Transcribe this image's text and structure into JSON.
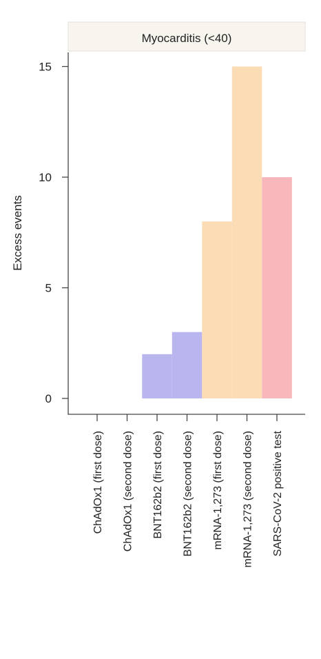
{
  "chart_data": {
    "type": "bar",
    "title": "",
    "panel_title": "Myocarditis (<40)",
    "xlabel": "",
    "ylabel": "Excess events",
    "ylim": [
      0,
      16
    ],
    "yticks": [
      0,
      5,
      10,
      15
    ],
    "grid": false,
    "legend": "none",
    "categories": [
      "ChAdOx1 (first dose)",
      "ChAdOx1 (second dose)",
      "BNT162b2 (first dose)",
      "BNT162b2 (second dose)",
      "mRNA-1,273 (first dose)",
      "mRNA-1,273 (second dose)",
      "SARS-CoV-2 positive test"
    ],
    "values": [
      0,
      0,
      2,
      3,
      8,
      15,
      10
    ],
    "colors": [
      "#b9b6ef",
      "#b9b6ef",
      "#b9b6ef",
      "#b9b6ef",
      "#fcdcb5",
      "#fcdcb5",
      "#f7b7bb"
    ],
    "panel_header_color": "#f8f5ef"
  }
}
